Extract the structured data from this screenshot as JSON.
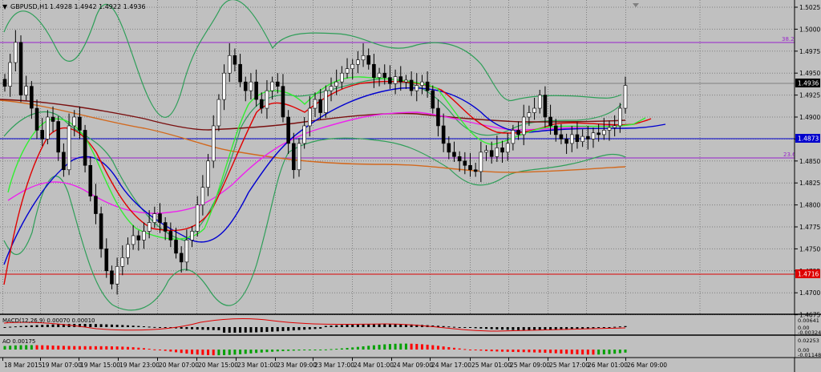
{
  "header": {
    "title": "GBPUSD,H1",
    "ohlc": "1.4928 1.4942 1.4922 1.4936",
    "menu_icon": "triangle-down-icon"
  },
  "price_axis": {
    "ticks": [
      "1.5025",
      "1.5000",
      "1.4975",
      "1.4950",
      "1.4925",
      "1.4900",
      "1.4875",
      "1.4850",
      "1.4825",
      "1.4800",
      "1.4775",
      "1.4750",
      "1.4725",
      "1.4700",
      "1.4675"
    ],
    "current_price": "1.4936",
    "blue_line_price": "1.4873",
    "red_line_price": "1.4716"
  },
  "levels": {
    "fib_382": "38.2",
    "fib_236": "23.6"
  },
  "time_axis": {
    "labels": [
      "18 Mar 2015",
      "19 Mar 07:00",
      "19 Mar 15:00",
      "19 Mar 23:00",
      "20 Mar 07:00",
      "20 Mar 15:00",
      "23 Mar 01:00",
      "23 Mar 09:00",
      "23 Mar 17:00",
      "24 Mar 01:00",
      "24 Mar 09:00",
      "24 Mar 17:00",
      "25 Mar 01:00",
      "25 Mar 09:00",
      "25 Mar 17:00",
      "26 Mar 01:00",
      "26 Mar 09:00"
    ]
  },
  "sub1": {
    "label": "MACD(12,26,9) 0.00070 0.00010",
    "ticks": [
      "0.00641",
      "0.00",
      "-0.00324"
    ]
  },
  "sub2": {
    "label": "AO 0.00175",
    "ticks": [
      "0.02253",
      "0.00",
      "-0.01148"
    ]
  },
  "colors": {
    "background": "#c0c0c0",
    "grid": "#808080",
    "bull_candle": "#ffffff",
    "bear_candle": "#000000",
    "bollinger": "#2e9e58",
    "ma_red": "#e00000",
    "ma_green": "#33ee33",
    "ma_blue": "#0000d0",
    "ma_magenta": "#ee22ee",
    "ma_brown": "#7a1010",
    "ma_orange": "#d2691e",
    "level_purple": "#9922cc",
    "level_blue": "#0000cc",
    "level_red": "#dd0000",
    "ao_up": "#00a000",
    "ao_down": "#ff0000"
  },
  "chart_data": {
    "type": "candlestick",
    "symbol": "GBPUSD",
    "timeframe": "H1",
    "ylim": [
      1.4665,
      1.5035
    ],
    "candles_close": [
      1.4935,
      1.4962,
      1.4985,
      1.4925,
      1.4935,
      1.491,
      1.4885,
      1.4875,
      1.49,
      1.4895,
      1.486,
      1.484,
      1.489,
      1.49,
      1.4885,
      1.4845,
      1.481,
      1.479,
      1.475,
      1.4725,
      1.471,
      1.473,
      1.474,
      1.4755,
      1.4765,
      1.476,
      1.477,
      1.478,
      1.479,
      1.478,
      1.477,
      1.476,
      1.4745,
      1.4735,
      1.476,
      1.477,
      1.48,
      1.482,
      1.485,
      1.489,
      1.492,
      1.495,
      1.497,
      1.496,
      1.494,
      1.493,
      1.494,
      1.492,
      1.491,
      1.493,
      1.494,
      1.4935,
      1.49,
      1.487,
      1.484,
      1.487,
      1.489,
      1.491,
      1.492,
      1.4905,
      1.493,
      1.4935,
      1.494,
      1.495,
      1.4955,
      1.496,
      1.4965,
      1.497,
      1.496,
      1.4945,
      1.495,
      1.4945,
      1.4938,
      1.4946,
      1.494,
      1.4942,
      1.493,
      1.4936,
      1.494,
      1.493,
      1.491,
      1.489,
      1.487,
      1.486,
      1.4855,
      1.485,
      1.4845,
      1.484,
      1.4838,
      1.486,
      1.4862,
      1.4855,
      1.4865,
      1.486,
      1.487,
      1.4885,
      1.488,
      1.49,
      1.4905,
      1.491,
      1.4925,
      1.49,
      1.489,
      1.488,
      1.4875,
      1.487,
      1.488,
      1.4872,
      1.4878,
      1.4875,
      1.4882,
      1.488,
      1.4885,
      1.4888,
      1.489,
      1.491,
      1.4936
    ]
  }
}
